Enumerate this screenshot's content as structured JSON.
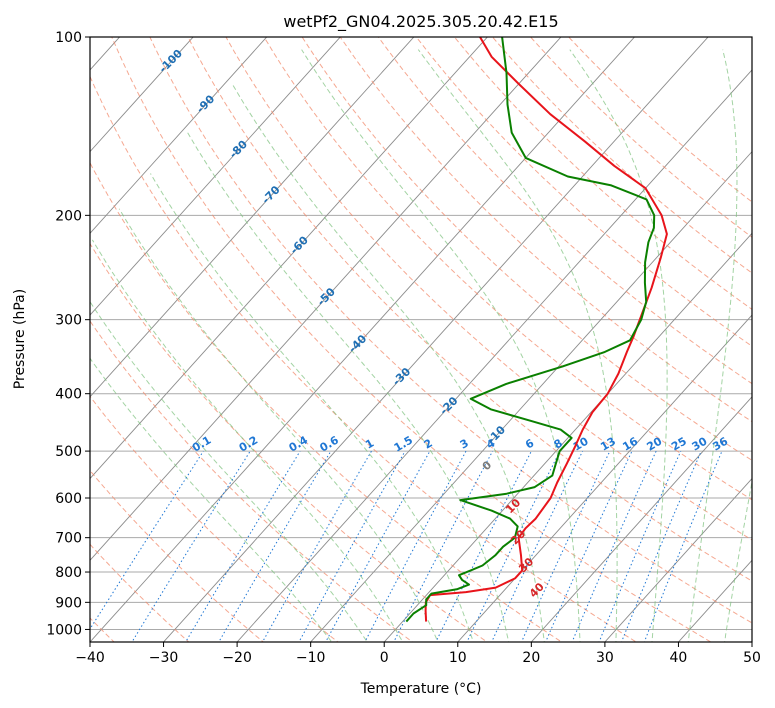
{
  "chart_data": {
    "type": "line",
    "title": "wetPf2_GN04.2025.305.20.42.E15",
    "xlabel": "Temperature (°C)",
    "ylabel": "Pressure (hPa)",
    "xlim": [
      -40,
      50
    ],
    "ylim": [
      1050,
      100
    ],
    "y_scale": "log",
    "x_ticks": [
      "−40",
      "−30",
      "−20",
      "−10",
      "0",
      "10",
      "20",
      "30",
      "40",
      "50"
    ],
    "y_ticks": [
      "100",
      "200",
      "300",
      "400",
      "500",
      "600",
      "700",
      "800",
      "900",
      "1000"
    ],
    "grid": true,
    "skew": "45° skew-T / log-p",
    "series": [
      {
        "color": "#e8141b",
        "points": [
          [
            3.2,
            970
          ],
          [
            1.8,
            930
          ],
          [
            0.8,
            900
          ],
          [
            0.5,
            875
          ],
          [
            5.0,
            865
          ],
          [
            8.5,
            850
          ],
          [
            10.0,
            820
          ],
          [
            10.0,
            795
          ],
          [
            8.0,
            750
          ],
          [
            5.5,
            700
          ],
          [
            5.3,
            675
          ],
          [
            5.5,
            650
          ],
          [
            5.0,
            600
          ],
          [
            4.0,
            565
          ],
          [
            3.0,
            525
          ],
          [
            2.0,
            490
          ],
          [
            1.0,
            460
          ],
          [
            0.2,
            430
          ],
          [
            0.0,
            400
          ],
          [
            -1.0,
            370
          ],
          [
            -2.5,
            340
          ],
          [
            -3.5,
            320
          ],
          [
            -5.0,
            295
          ],
          [
            -7.0,
            265
          ],
          [
            -9.5,
            235
          ],
          [
            -11.5,
            215
          ],
          [
            -14.5,
            200
          ],
          [
            -20.0,
            180
          ],
          [
            -27.0,
            165
          ],
          [
            -34.0,
            150
          ],
          [
            -42.0,
            135
          ],
          [
            -50.0,
            120
          ],
          [
            -57.0,
            108
          ],
          [
            -61.0,
            100
          ]
        ]
      },
      {
        "color": "#0a8000",
        "points": [
          [
            0.5,
            970
          ],
          [
            0.5,
            940
          ],
          [
            1.2,
            910
          ],
          [
            0.5,
            890
          ],
          [
            0.5,
            870
          ],
          [
            3.5,
            855
          ],
          [
            4.5,
            840
          ],
          [
            3.0,
            825
          ],
          [
            2.0,
            810
          ],
          [
            3.0,
            795
          ],
          [
            4.0,
            780
          ],
          [
            4.5,
            750
          ],
          [
            4.5,
            725
          ],
          [
            5.0,
            700
          ],
          [
            4.0,
            670
          ],
          [
            2.0,
            650
          ],
          [
            -1.5,
            630
          ],
          [
            -7.0,
            605
          ],
          [
            -1.5,
            590
          ],
          [
            1.5,
            575
          ],
          [
            2.5,
            550
          ],
          [
            1.5,
            525
          ],
          [
            0.5,
            500
          ],
          [
            0.5,
            475
          ],
          [
            -2.0,
            460
          ],
          [
            -7.0,
            445
          ],
          [
            -14.0,
            425
          ],
          [
            -18.0,
            408
          ],
          [
            -15.0,
            385
          ],
          [
            -9.5,
            360
          ],
          [
            -5.5,
            340
          ],
          [
            -3.5,
            325
          ],
          [
            -4.5,
            300
          ],
          [
            -6.0,
            280
          ],
          [
            -8.5,
            260
          ],
          [
            -11.0,
            240
          ],
          [
            -13.0,
            222
          ],
          [
            -14.0,
            210
          ],
          [
            -15.5,
            200
          ],
          [
            -18.5,
            188
          ],
          [
            -25.0,
            178
          ],
          [
            -32.0,
            172
          ],
          [
            -40.0,
            160
          ],
          [
            -45.0,
            145
          ],
          [
            -49.0,
            130
          ],
          [
            -53.0,
            115
          ],
          [
            -58.0,
            100
          ]
        ]
      }
    ],
    "annotations": {
      "dry_adiabat_labels": [
        "-100",
        "-90",
        "-80",
        "-70",
        "-60",
        "-50",
        "-40",
        "-30",
        "-20",
        "-10"
      ],
      "moist_adiabat_labels": [
        "0",
        "10",
        "20",
        "30",
        "40"
      ],
      "mixing_ratio_labels": [
        "0.1",
        "0.2",
        "0.4",
        "0.6",
        "1",
        "1.5",
        "2",
        "3",
        "4",
        "6",
        "8",
        "10",
        "13",
        "16",
        "20",
        "25",
        "30",
        "36"
      ]
    },
    "colors": {
      "isotherm": "#8c8c8c",
      "isobar": "#aaaaaa",
      "dry_adiabat": "#f28b6c",
      "moist_adiabat": "#7cc07c",
      "mixing_ratio": "#1f77d4",
      "dry_label": "#1f6fb4",
      "moist_label": "#d62728"
    }
  }
}
